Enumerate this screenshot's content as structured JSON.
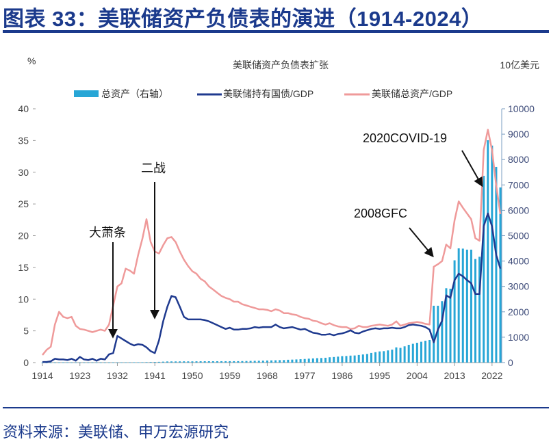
{
  "figure_title": "图表 33：美联储资产负债表的演进（1914-2024）",
  "source": "资料来源：美联储、申万宏源研究",
  "colors": {
    "title": "#1b3a8c",
    "bars": "#27a6d6",
    "treasury_line": "#1f3a8f",
    "assets_line": "#ef9a9a"
  },
  "chart_data": {
    "type": "bar+line",
    "title": "美联储资产负债表扩张",
    "ylabel_left": "%",
    "ylabel_right": "10亿美元",
    "ylim_left": [
      0,
      40
    ],
    "ylim_right": [
      0,
      10000
    ],
    "xlim": [
      1914,
      2024
    ],
    "x_ticks": [
      "1914",
      "1923",
      "1932",
      "1941",
      "1950",
      "1959",
      "1968",
      "1977",
      "1986",
      "1995",
      "2004",
      "2013",
      "2022"
    ],
    "y_ticks_left": [
      "0",
      "5",
      "10",
      "15",
      "20",
      "25",
      "30",
      "35",
      "40"
    ],
    "y_ticks_right": [
      "0",
      "1000",
      "2000",
      "3000",
      "4000",
      "5000",
      "6000",
      "7000",
      "8000",
      "9000",
      "10000"
    ],
    "legend_placement": "top",
    "grid": false,
    "x_start": 1914,
    "series": [
      {
        "name": "总资产（右轴）",
        "type": "bar",
        "axis": "right",
        "values": [
          0.3,
          0.5,
          0.7,
          3,
          5,
          6,
          6,
          4,
          3,
          3,
          3,
          3,
          3,
          3,
          3,
          3,
          4,
          5,
          5,
          7,
          8,
          10,
          12,
          13,
          15,
          19,
          24,
          26,
          30,
          37,
          45,
          47,
          47,
          48,
          50,
          48,
          48,
          51,
          53,
          54,
          54,
          54,
          55,
          55,
          55,
          56,
          56,
          57,
          59,
          62,
          66,
          69,
          72,
          76,
          82,
          87,
          91,
          97,
          100,
          111,
          117,
          124,
          133,
          142,
          155,
          164,
          174,
          180,
          190,
          210,
          220,
          235,
          255,
          260,
          275,
          280,
          300,
          320,
          340,
          380,
          410,
          440,
          450,
          480,
          510,
          600,
          580,
          640,
          700,
          740,
          780,
          820,
          860,
          890,
          2240,
          2240,
          2420,
          2930,
          2910,
          4030,
          4500,
          4490,
          4450,
          4450,
          4080,
          4170,
          7360,
          8760,
          8550,
          7710,
          6900
        ]
      },
      {
        "name": "美联储持有国债/GDP",
        "type": "line",
        "axis": "left",
        "values": [
          0.1,
          0.1,
          0.2,
          0.6,
          0.5,
          0.5,
          0.4,
          0.6,
          0.3,
          0.9,
          0.5,
          0.4,
          0.6,
          0.3,
          0.6,
          0.5,
          1.3,
          1.5,
          4.2,
          3.8,
          3.4,
          3,
          2.7,
          2.9,
          2.8,
          2.4,
          1.8,
          1.5,
          3.5,
          6.5,
          8.8,
          10.5,
          10.3,
          8.8,
          7.2,
          6.8,
          6.8,
          6.8,
          6.8,
          6.7,
          6.5,
          6.2,
          5.9,
          5.6,
          5.3,
          5.5,
          5.2,
          5.2,
          5.3,
          5.3,
          5.4,
          5.6,
          5.5,
          5.6,
          5.6,
          5.6,
          6,
          5.6,
          5.4,
          5.5,
          5.6,
          5.4,
          5.2,
          5.3,
          5,
          4.7,
          4.6,
          4.4,
          4.4,
          4.5,
          4.3,
          4.5,
          4.6,
          4.8,
          5.1,
          4.7,
          4.6,
          4.9,
          5.1,
          5.3,
          5.4,
          5.3,
          5.4,
          5.4,
          5.5,
          5.4,
          5.4,
          5.6,
          5.9,
          6,
          5.9,
          5.8,
          5.6,
          5.2,
          3.2,
          5.2,
          6.6,
          10.6,
          10.2,
          13,
          14,
          13.6,
          13,
          12.5,
          10.8,
          10.8,
          21.5,
          23.5,
          21.5,
          17,
          14.8
        ]
      },
      {
        "name": "美联储总资产/GDP",
        "type": "line",
        "axis": "left",
        "values": [
          1.2,
          2,
          2.5,
          6,
          8,
          7.2,
          7,
          7.2,
          5.8,
          5.3,
          5.2,
          5,
          4.8,
          5,
          5.2,
          5,
          6,
          9,
          12,
          12.5,
          14.8,
          14.5,
          14,
          17,
          19.5,
          22.6,
          19,
          17.5,
          17.2,
          18.5,
          19.6,
          19.8,
          19,
          17.5,
          16.2,
          15.2,
          14.4,
          14,
          13.2,
          12.8,
          12,
          11.5,
          11,
          10.5,
          10.2,
          10,
          9.6,
          9.6,
          9.2,
          9,
          8.8,
          8.6,
          8.4,
          8.4,
          8.3,
          8.1,
          8.4,
          8.2,
          7.8,
          7.8,
          7.6,
          7.5,
          7.2,
          7,
          6.9,
          6.6,
          6.5,
          6.2,
          6,
          6.2,
          5.9,
          5.7,
          5.6,
          5.6,
          5.3,
          5.4,
          5.8,
          5.6,
          5.6,
          5.8,
          5.9,
          6,
          5.9,
          5.8,
          6,
          6.5,
          5.8,
          6,
          6.2,
          6.3,
          6.4,
          6.3,
          6.1,
          6,
          15.1,
          15.5,
          16,
          18.6,
          18,
          22.4,
          25.4,
          24.4,
          23.5,
          22.6,
          19.6,
          19.2,
          33.5,
          36.7,
          33.5,
          28,
          23.4
        ]
      }
    ],
    "annotations": [
      "大萧条",
      "二战",
      "2008GFC",
      "2020COVID-19"
    ]
  }
}
